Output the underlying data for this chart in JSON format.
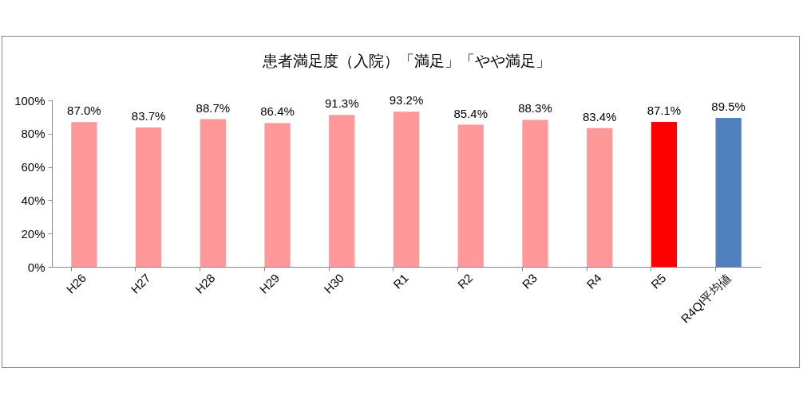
{
  "chart_data": {
    "type": "bar",
    "title": "患者満足度（入院）「満足」「やや満足」",
    "categories": [
      "H26",
      "H27",
      "H28",
      "H29",
      "H30",
      "R1",
      "R2",
      "R3",
      "R4",
      "R5",
      "R4QI平均値"
    ],
    "values": [
      87.0,
      83.7,
      88.7,
      86.4,
      91.3,
      93.2,
      85.4,
      88.3,
      83.4,
      87.1,
      89.5
    ],
    "value_labels": [
      "87.0%",
      "83.7%",
      "88.7%",
      "86.4%",
      "91.3%",
      "93.2%",
      "85.4%",
      "88.3%",
      "83.4%",
      "87.1%",
      "89.5%"
    ],
    "colors": [
      "#ff9999",
      "#ff9999",
      "#ff9999",
      "#ff9999",
      "#ff9999",
      "#ff9999",
      "#ff9999",
      "#ff9999",
      "#ff9999",
      "#ff0000",
      "#4f81bd"
    ],
    "ylim": [
      0,
      100
    ],
    "yticks": [
      {
        "value": 0,
        "label": "0%"
      },
      {
        "value": 20,
        "label": "20%"
      },
      {
        "value": 40,
        "label": "40%"
      },
      {
        "value": 60,
        "label": "60%"
      },
      {
        "value": 80,
        "label": "80%"
      },
      {
        "value": 100,
        "label": "100%"
      }
    ],
    "grid": false,
    "legend": false
  }
}
